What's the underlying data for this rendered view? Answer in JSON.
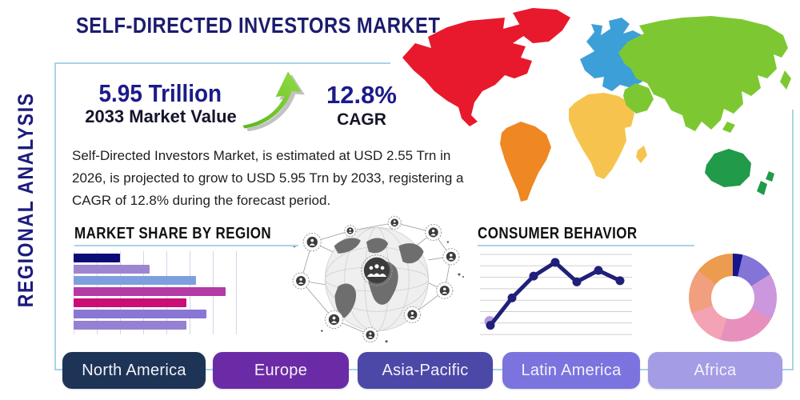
{
  "title": "SELF-DIRECTED INVESTORS MARKET",
  "side_label": "REGIONAL ANALYSIS",
  "stats": {
    "market_value": "5.95 Trillion",
    "market_value_label": "2033 Market Value",
    "cagr_value": "12.8%",
    "cagr_label": "CAGR"
  },
  "description": "Self-Directed Investors Market, is estimated at USD 2.55 Trn in 2026, is projected to grow to USD 5.95 Trn by 2033, registering a CAGR of 12.8% during the forecast period.",
  "icons": {
    "growth_arrow": "growth-arrow-icon",
    "globe_network": "globe-network-graphic",
    "world_map": "world-map"
  },
  "accent_colors": {
    "frame_border": "#a9d3e6",
    "title_navy": "#1c1c6e",
    "arrow_green": "#6abe28"
  },
  "map": {
    "continents": [
      {
        "name": "North America",
        "color": "#e8192c"
      },
      {
        "name": "South America",
        "color": "#ef8722"
      },
      {
        "name": "Europe",
        "color": "#3d9fd8"
      },
      {
        "name": "Africa",
        "color": "#f6c44e"
      },
      {
        "name": "Asia",
        "color": "#7dc832"
      },
      {
        "name": "Australia",
        "color": "#219a4a"
      }
    ]
  },
  "chart_data": [
    {
      "type": "bar",
      "title": "MARKET SHARE BY REGION",
      "orientation": "horizontal",
      "categories": [
        "",
        "",
        "",
        "",
        "",
        "",
        ""
      ],
      "values": [
        28,
        46,
        74,
        92,
        68,
        80,
        68
      ],
      "values_note": "relative bar lengths 0-100, estimated from pixels; no numeric axis labels shown",
      "colors": [
        "#0c0c78",
        "#9d85d2",
        "#7e9fdf",
        "#b43ba6",
        "#cb0d76",
        "#8a76d4",
        "#9580d2"
      ],
      "grid": true,
      "xlabel": "",
      "ylabel": ""
    },
    {
      "type": "line",
      "title": "CONSUMER BEHAVIOR",
      "x": [
        1,
        2,
        3,
        4,
        5,
        6,
        7
      ],
      "values": [
        0.8,
        3.2,
        5.1,
        6.3,
        4.6,
        5.6,
        4.7
      ],
      "ylim": [
        0,
        7
      ],
      "line_color": "#20207a",
      "start_marker_color": "#b49ae0",
      "grid": true,
      "axis_labels_shown": false,
      "xlabel": "",
      "ylabel": ""
    },
    {
      "type": "donut",
      "title": "",
      "segments": [
        {
          "color": "#15158c",
          "percent": 3.6
        },
        {
          "color": "#8474d8",
          "percent": 12.5
        },
        {
          "color": "#cb97dd",
          "percent": 17.0
        },
        {
          "color": "#e890bd",
          "percent": 21.5
        },
        {
          "color": "#f4a3b4",
          "percent": 14.5
        },
        {
          "color": "#f19f7e",
          "percent": 16.4
        },
        {
          "color": "#eb9c4e",
          "percent": 14.5
        }
      ]
    }
  ],
  "region_buttons": [
    {
      "label": "North America",
      "color": "#1d3456"
    },
    {
      "label": "Europe",
      "color": "#6c2ba6"
    },
    {
      "label": "Asia-Pacific",
      "color": "#4b48a7"
    },
    {
      "label": "Latin America",
      "color": "#7b73de"
    },
    {
      "label": "Africa",
      "color": "#a49ce4"
    }
  ]
}
